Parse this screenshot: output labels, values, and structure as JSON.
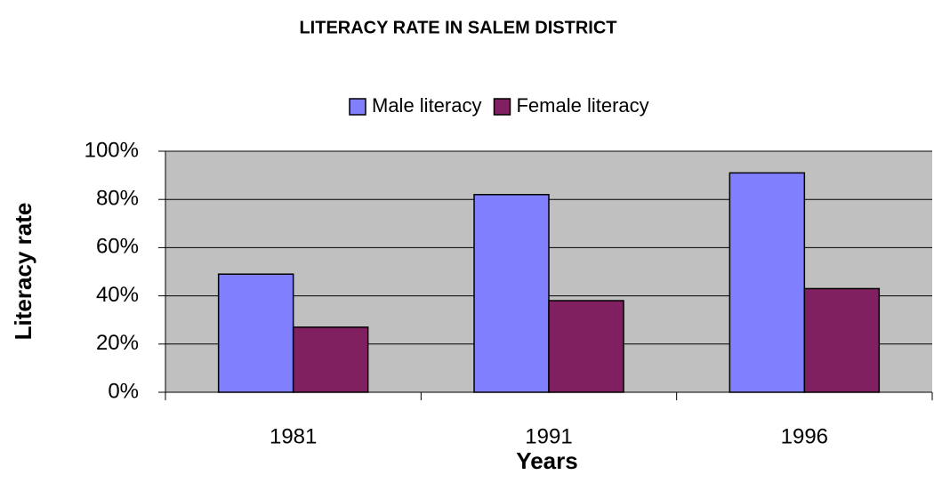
{
  "chart_data": {
    "type": "bar",
    "title": "LITERACY RATE IN SALEM DISTRICT",
    "xlabel": "Years",
    "ylabel": "Literacy rate",
    "categories": [
      "1981",
      "1991",
      "1996"
    ],
    "series": [
      {
        "name": "Male literacy",
        "color": "#8080ff",
        "values": [
          49,
          82,
          91
        ]
      },
      {
        "name": "Female literacy",
        "color": "#802060",
        "values": [
          27,
          38,
          43
        ]
      }
    ],
    "ylim": [
      0,
      100
    ],
    "yticks": [
      {
        "value": 0,
        "label": "0%"
      },
      {
        "value": 20,
        "label": "20%"
      },
      {
        "value": 40,
        "label": "40%"
      },
      {
        "value": 60,
        "label": "60%"
      },
      {
        "value": 80,
        "label": "80%"
      },
      {
        "value": 100,
        "label": "100%"
      }
    ],
    "grid": true,
    "legend": "top"
  }
}
